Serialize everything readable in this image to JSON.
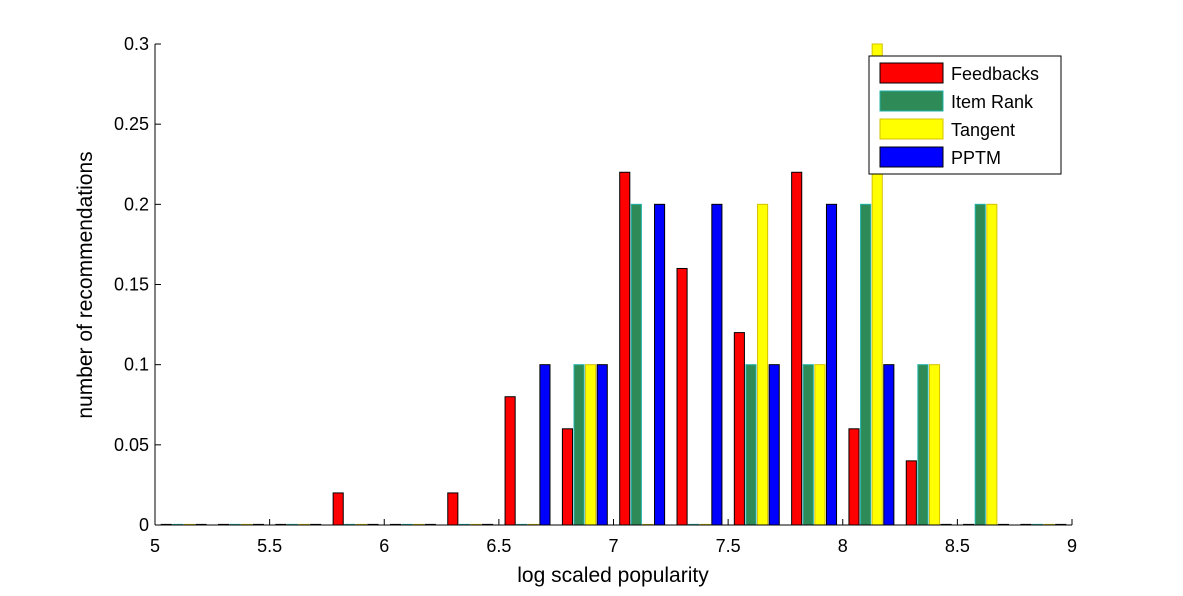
{
  "chart_data": {
    "type": "bar",
    "title": "",
    "xlabel": "log scaled popularity",
    "ylabel": "number of recommendations",
    "xlim": [
      5,
      9
    ],
    "ylim": [
      0,
      0.3
    ],
    "x_ticks": [
      "5",
      "5.5",
      "6",
      "6.5",
      "7",
      "7.5",
      "8",
      "8.5",
      "9"
    ],
    "y_ticks": [
      "0",
      "0.05",
      "0.1",
      "0.15",
      "0.2",
      "0.25",
      "0.3"
    ],
    "x_tick_values": [
      5,
      5.5,
      6,
      6.5,
      7,
      7.5,
      8,
      8.5,
      9
    ],
    "y_tick_values": [
      0,
      0.05,
      0.1,
      0.15,
      0.2,
      0.25,
      0.3
    ],
    "grid": false,
    "legend_position": "top-right",
    "bin_centers": [
      5.125,
      5.375,
      5.625,
      5.875,
      6.125,
      6.375,
      6.625,
      6.875,
      7.125,
      7.375,
      7.625,
      7.875,
      8.125,
      8.375,
      8.625,
      8.875
    ],
    "series": [
      {
        "name": "Feedbacks",
        "color": "#ff0000",
        "edge": "#000000",
        "values": [
          0,
          0,
          0,
          0.02,
          0,
          0.02,
          0.08,
          0.06,
          0.22,
          0.16,
          0.12,
          0.22,
          0.06,
          0.04,
          0,
          0
        ]
      },
      {
        "name": "Item Rank",
        "color": "#2e8b57",
        "edge": "#20b2aa",
        "values": [
          0,
          0,
          0,
          0,
          0,
          0,
          0,
          0.1,
          0.2,
          0,
          0.1,
          0.1,
          0.2,
          0.1,
          0.2,
          0
        ]
      },
      {
        "name": "Tangent",
        "color": "#ffff00",
        "edge": "#d4c200",
        "values": [
          0,
          0,
          0,
          0,
          0,
          0,
          0,
          0.1,
          0,
          0,
          0.2,
          0.1,
          0.3,
          0.1,
          0.2,
          0
        ]
      },
      {
        "name": "PPTM",
        "color": "#0000ff",
        "edge": "#000000",
        "values": [
          0,
          0,
          0,
          0,
          0,
          0,
          0.1,
          0.1,
          0.2,
          0.2,
          0.1,
          0.2,
          0.1,
          0,
          0,
          0
        ]
      }
    ]
  }
}
